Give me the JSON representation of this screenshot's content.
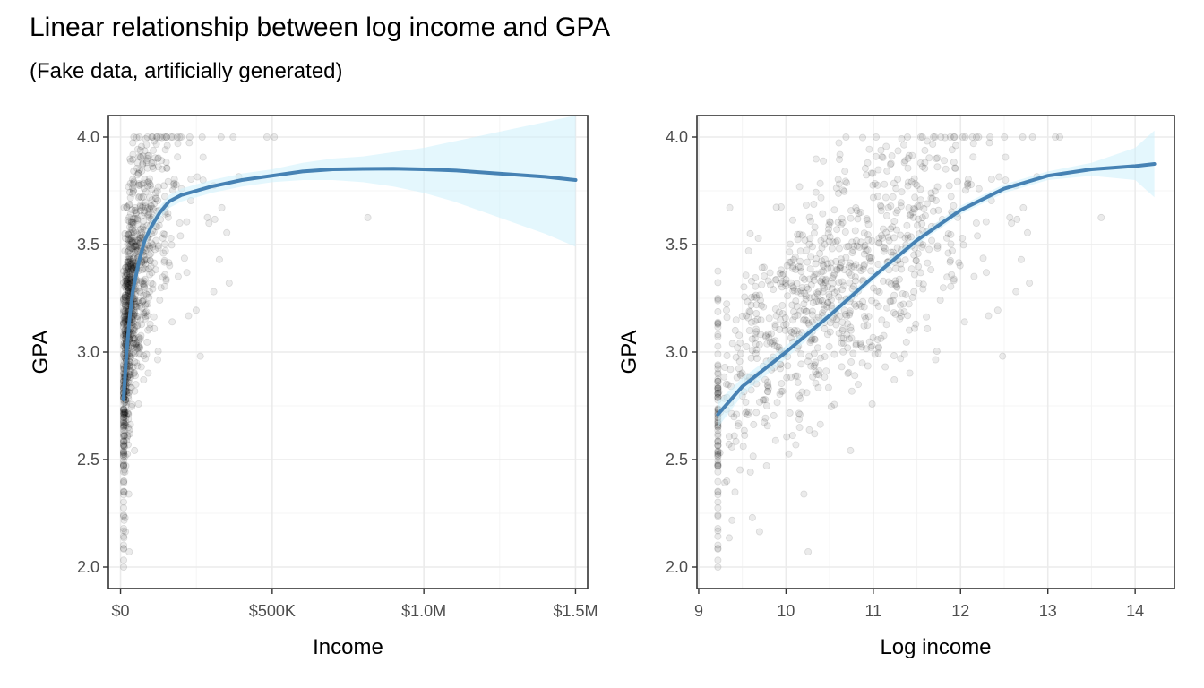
{
  "title": "Linear relationship between log income and GPA",
  "subtitle": "(Fake data, artificially generated)",
  "colors": {
    "line": "#4682b4",
    "ribbon": "#cdf1fc",
    "points": "#000000",
    "grid_major": "#ebebeb",
    "grid_minor": "#f4f4f4",
    "panel_border": "#333333"
  },
  "chart_data": [
    {
      "type": "scatter",
      "xlabel": "Income",
      "ylabel": "GPA",
      "xlim": [
        -40000,
        1540000
      ],
      "ylim": [
        1.9,
        4.1
      ],
      "x_ticks": [
        0,
        500000,
        1000000,
        1500000
      ],
      "x_tick_labels": [
        "$0",
        "$500K",
        "$1.0M",
        "$1.5M"
      ],
      "y_ticks": [
        2.0,
        2.5,
        3.0,
        3.5,
        4.0
      ],
      "y_tick_labels": [
        "2.0",
        "2.5",
        "3.0",
        "3.5",
        "4.0"
      ],
      "grid": true,
      "points": "about 1,000 semi-transparent points; incomes mostly below $200K with GPA 2.0–4.0 (many capped at 4.0), a sparse tail to about $1.5M",
      "smooth": {
        "x": [
          10000,
          20000,
          30000,
          40000,
          60000,
          80000,
          100000,
          130000,
          160000,
          200000,
          250000,
          300000,
          400000,
          500000,
          600000,
          700000,
          800000,
          900000,
          1000000,
          1100000,
          1200000,
          1300000,
          1400000,
          1500000
        ],
        "y": [
          2.78,
          3.0,
          3.16,
          3.28,
          3.42,
          3.52,
          3.58,
          3.65,
          3.7,
          3.73,
          3.75,
          3.77,
          3.8,
          3.82,
          3.84,
          3.85,
          3.852,
          3.853,
          3.85,
          3.845,
          3.835,
          3.825,
          3.815,
          3.8
        ],
        "lower": [
          2.72,
          2.96,
          3.13,
          3.25,
          3.39,
          3.49,
          3.55,
          3.62,
          3.67,
          3.7,
          3.72,
          3.74,
          3.77,
          3.79,
          3.8,
          3.8,
          3.79,
          3.77,
          3.74,
          3.7,
          3.65,
          3.6,
          3.55,
          3.49
        ],
        "upper": [
          2.84,
          3.04,
          3.19,
          3.31,
          3.45,
          3.55,
          3.61,
          3.68,
          3.73,
          3.76,
          3.78,
          3.8,
          3.83,
          3.85,
          3.88,
          3.9,
          3.91,
          3.93,
          3.95,
          3.98,
          4.01,
          4.04,
          4.07,
          4.1
        ]
      }
    },
    {
      "type": "scatter",
      "xlabel": "Log income",
      "ylabel": "GPA",
      "xlim": [
        8.98,
        14.45
      ],
      "ylim": [
        1.9,
        4.1
      ],
      "x_ticks": [
        9,
        10,
        11,
        12,
        13,
        14
      ],
      "x_tick_labels": [
        "9",
        "10",
        "11",
        "12",
        "13",
        "14"
      ],
      "y_ticks": [
        2.0,
        2.5,
        3.0,
        3.5,
        4.0
      ],
      "y_tick_labels": [
        "2.0",
        "2.5",
        "3.0",
        "3.5",
        "4.0"
      ],
      "grid": true,
      "points": "about 1,000 semi-transparent points rising from GPA about 2.7 at log income 9.2 to 4.0 near 14",
      "smooth": {
        "x": [
          9.22,
          9.5,
          10.0,
          10.5,
          11.0,
          11.5,
          12.0,
          12.5,
          13.0,
          13.5,
          14.0,
          14.22
        ],
        "y": [
          2.71,
          2.84,
          3.0,
          3.17,
          3.35,
          3.52,
          3.66,
          3.76,
          3.82,
          3.85,
          3.865,
          3.875
        ],
        "lower": [
          2.65,
          2.8,
          2.97,
          3.15,
          3.33,
          3.5,
          3.64,
          3.74,
          3.8,
          3.82,
          3.8,
          3.72
        ],
        "upper": [
          2.77,
          2.88,
          3.03,
          3.19,
          3.37,
          3.54,
          3.68,
          3.78,
          3.84,
          3.88,
          3.95,
          4.03
        ]
      }
    }
  ]
}
